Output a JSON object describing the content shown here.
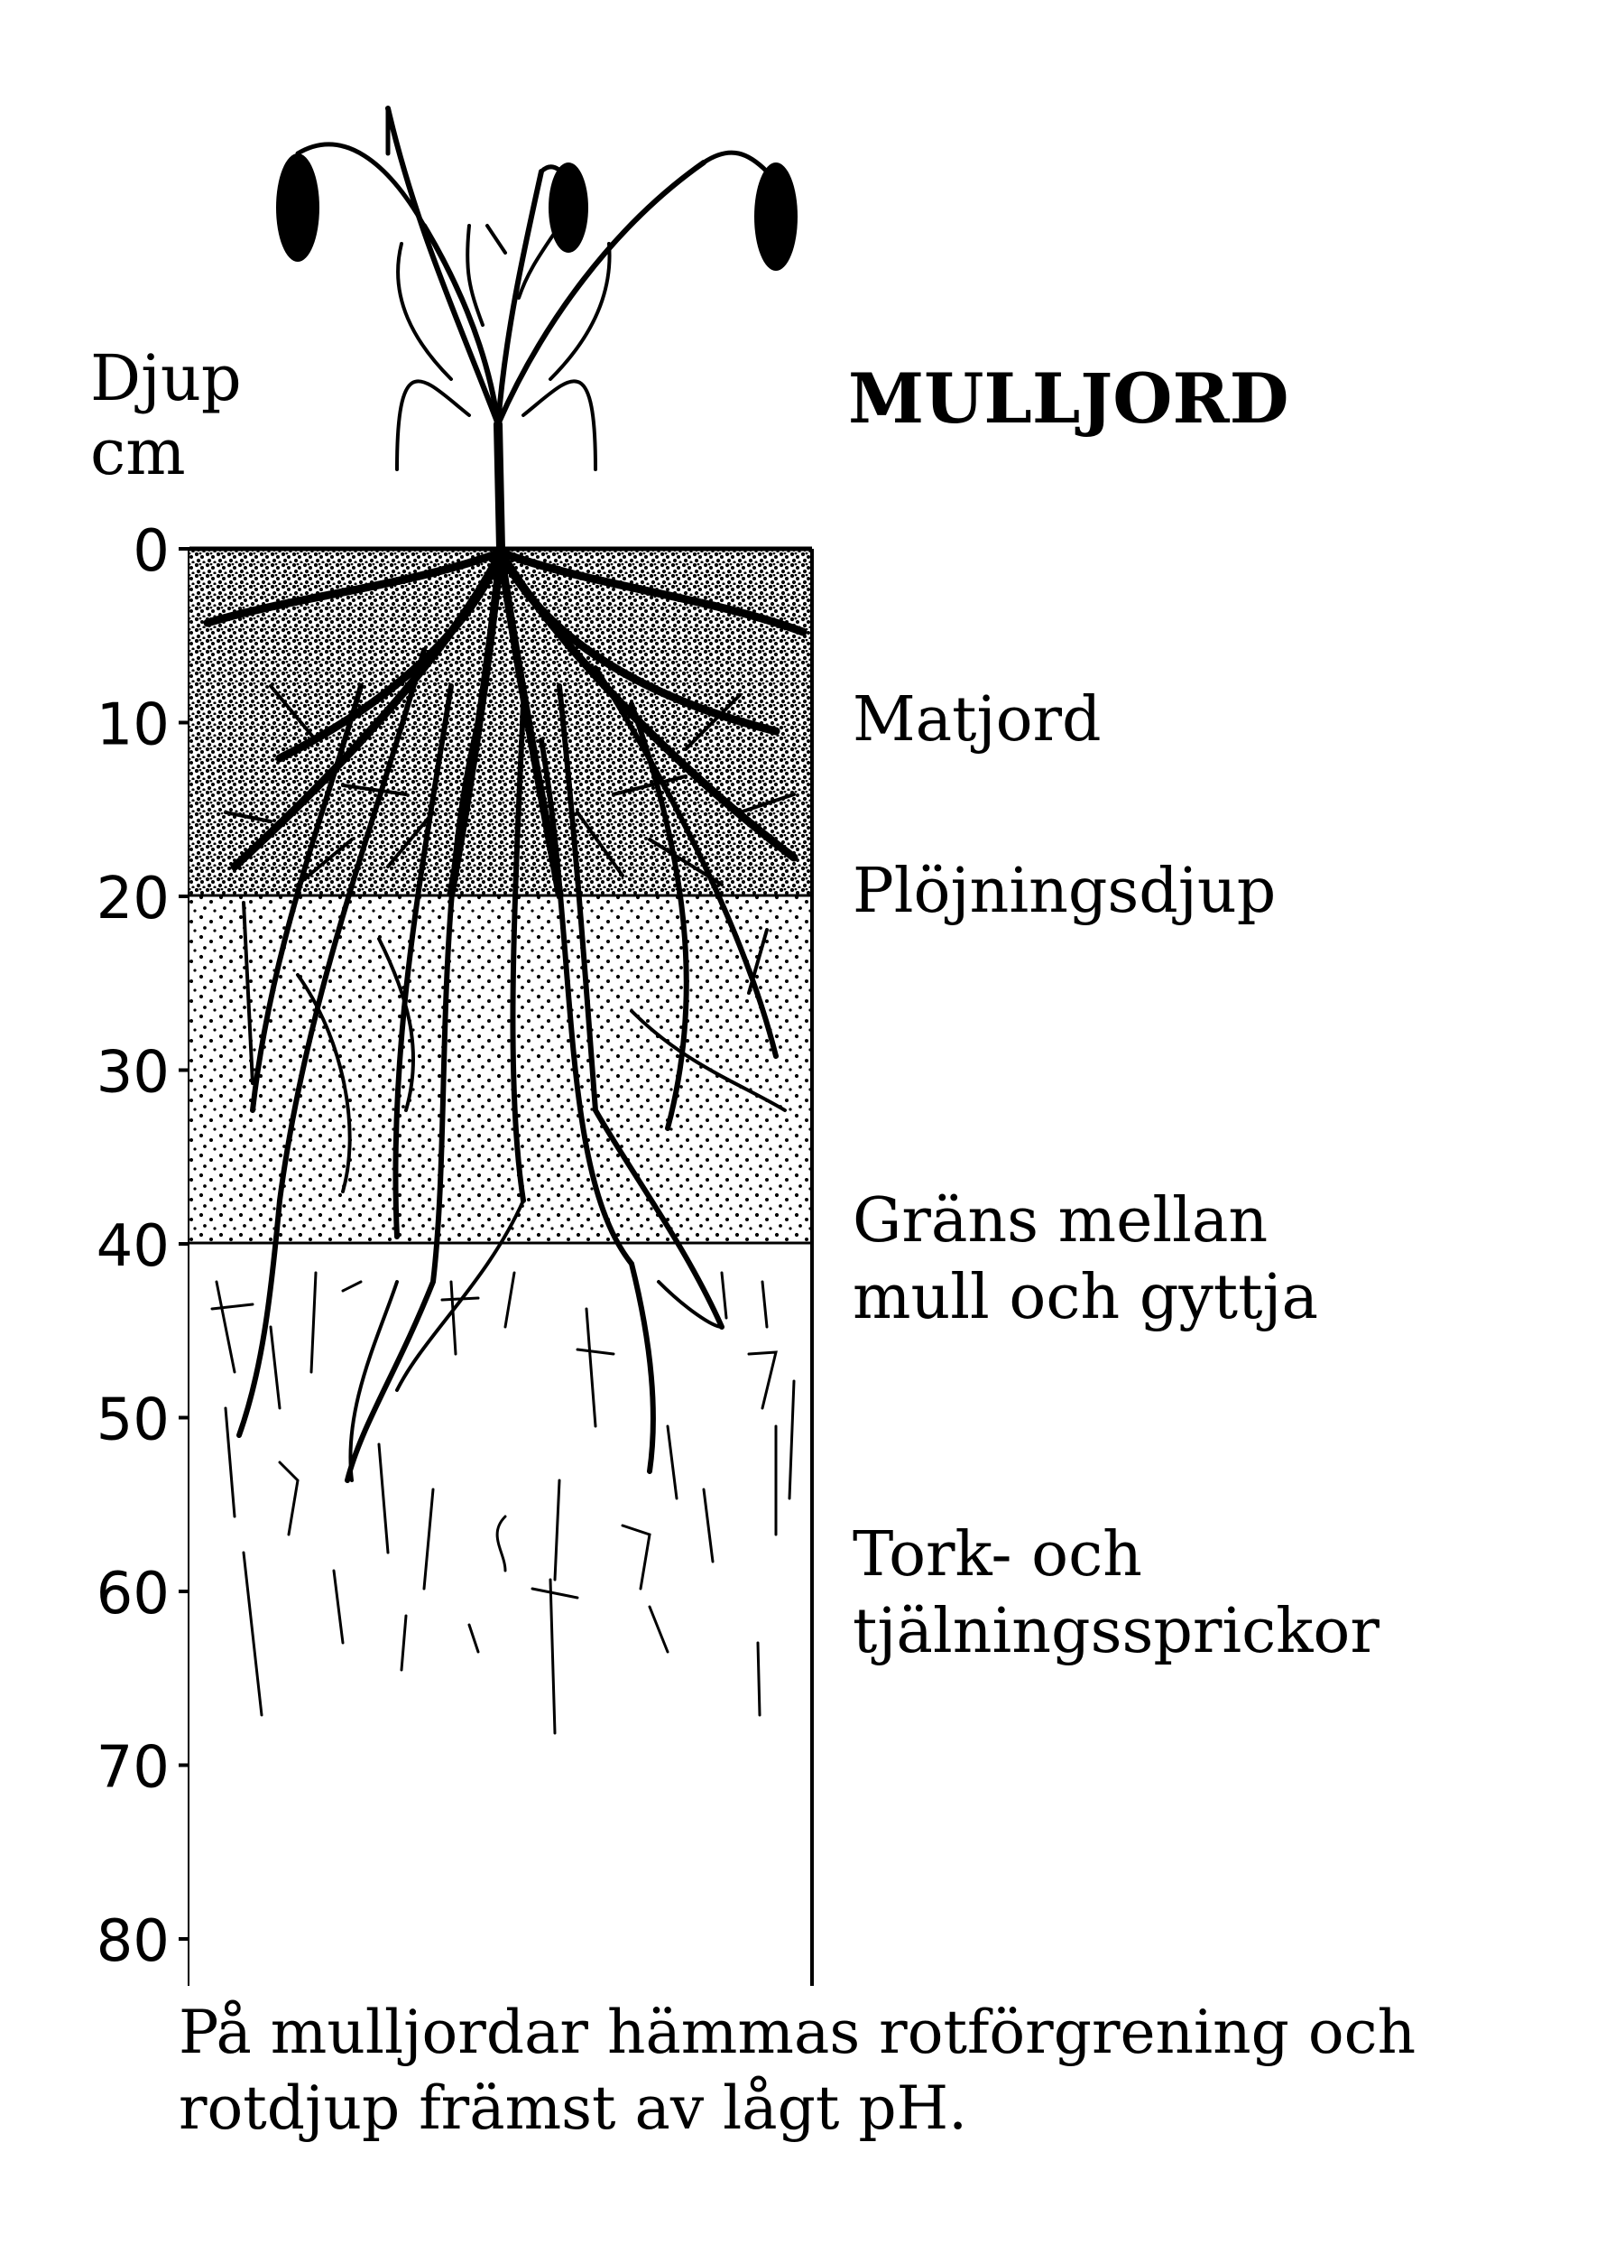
{
  "axis": {
    "label_line1": "Djup",
    "label_line2": "cm",
    "ticks": [
      "0",
      "10",
      "20",
      "30",
      "40",
      "50",
      "60",
      "70",
      "80"
    ]
  },
  "title": "MULLJORD",
  "layers": {
    "matjord": "Matjord",
    "plojningsdjup": "Plöjningsdjup",
    "grans_line1": "Gräns mellan",
    "grans_line2": "mull och gyttja",
    "tork_line1": "Tork- och",
    "tork_line2": "tjälningssprickor"
  },
  "caption": {
    "line1": "På mulljordar hämmas rotförgrening och",
    "line2": "rotdjup främst av lågt pH."
  }
}
